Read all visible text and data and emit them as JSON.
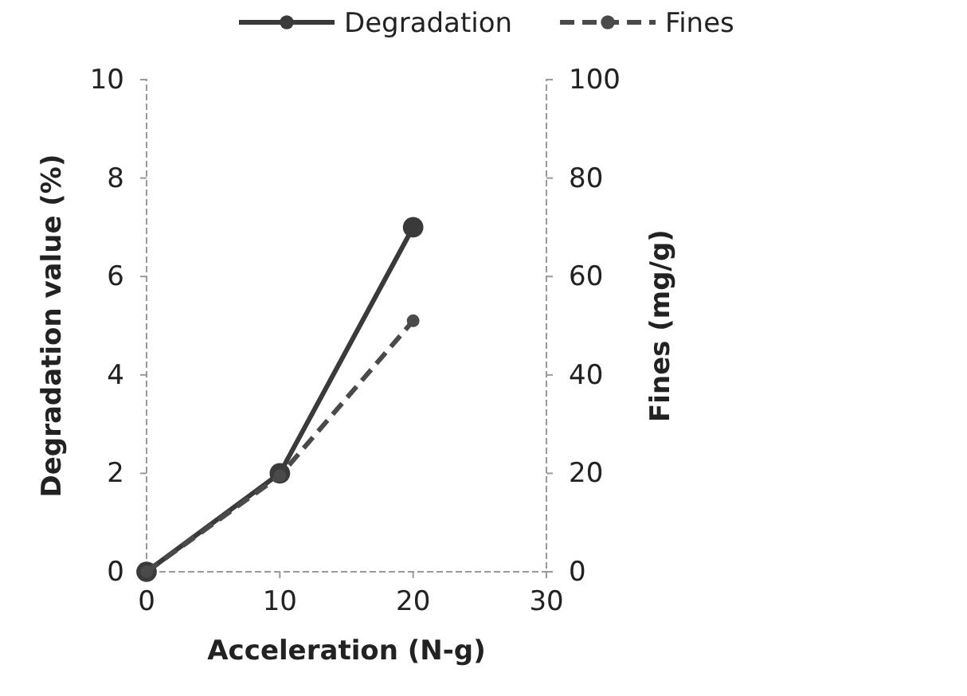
{
  "chart_data": {
    "type": "line",
    "xlabel": "Acceleration (N-g)",
    "ylabel": "Degradation value (%)",
    "y2label": "Fines (mg/g)",
    "x": [
      0,
      10,
      20
    ],
    "series": [
      {
        "name": "Degradation",
        "color": "#3a3a3a",
        "values": [
          0,
          2,
          7
        ],
        "line_style": "solid"
      },
      {
        "name": "Fines",
        "color": "#4a4a4a",
        "values": [
          0,
          19.5,
          51
        ],
        "axis": "y2",
        "line_style": "dashed"
      }
    ],
    "xlim": [
      0,
      30
    ],
    "xticks": [
      0,
      10,
      20,
      30
    ],
    "ylim": [
      0,
      10
    ],
    "yticks": [
      0,
      2,
      4,
      6,
      8,
      10
    ],
    "y2lim": [
      0,
      100
    ],
    "y2ticks": [
      0,
      20,
      40,
      60,
      80,
      100
    ],
    "marker": "circle",
    "legend": "top",
    "grid": false
  }
}
